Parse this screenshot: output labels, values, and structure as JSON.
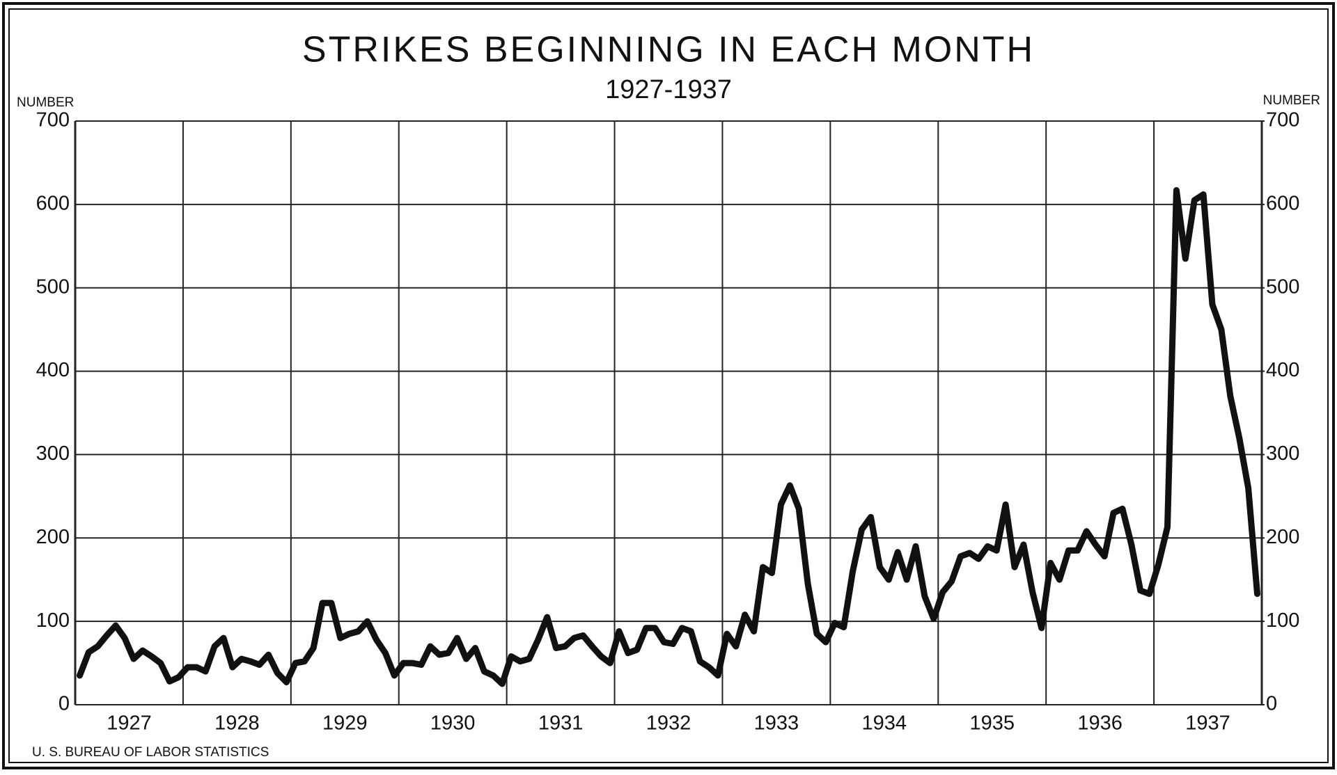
{
  "chart_data": {
    "type": "line",
    "title": "STRIKES BEGINNING IN EACH MONTH",
    "subtitle": "1927-1937",
    "y_label": "NUMBER",
    "y2_label": "NUMBER",
    "source": "U. S. BUREAU OF LABOR STATISTICS",
    "categories": [
      "1927",
      "1928",
      "1929",
      "1930",
      "1931",
      "1932",
      "1933",
      "1934",
      "1935",
      "1936",
      "1937"
    ],
    "values": [
      [
        35,
        63,
        70,
        83,
        95,
        80,
        55,
        65,
        58,
        50,
        28,
        33
      ],
      [
        45,
        45,
        40,
        70,
        80,
        45,
        55,
        52,
        48,
        60,
        38,
        27
      ],
      [
        50,
        52,
        68,
        122,
        122,
        80,
        85,
        88,
        100,
        78,
        62,
        35
      ],
      [
        50,
        50,
        48,
        70,
        60,
        62,
        80,
        55,
        68,
        40,
        35,
        25
      ],
      [
        58,
        52,
        55,
        78,
        105,
        68,
        70,
        80,
        83,
        70,
        58,
        50
      ],
      [
        88,
        62,
        66,
        92,
        92,
        75,
        73,
        92,
        88,
        52,
        45,
        35
      ],
      [
        85,
        70,
        108,
        88,
        165,
        158,
        240,
        263,
        235,
        145,
        85,
        75
      ],
      [
        98,
        93,
        160,
        210,
        225,
        165,
        150,
        183,
        150,
        190,
        130,
        103
      ],
      [
        135,
        148,
        178,
        182,
        175,
        190,
        185,
        240,
        165,
        192,
        135,
        92
      ],
      [
        170,
        150,
        185,
        185,
        208,
        192,
        178,
        230,
        235,
        192,
        137,
        133
      ],
      [
        168,
        213,
        617,
        535,
        605,
        612,
        480,
        450,
        370,
        320,
        260,
        133
      ]
    ],
    "color": "#111111",
    "ylim": [
      0,
      700
    ],
    "yticks": [
      0,
      100,
      200,
      300,
      400,
      500,
      600,
      700
    ],
    "y2lim": [
      0,
      700
    ],
    "y2ticks": [
      0,
      100,
      200,
      300,
      400,
      500,
      600,
      700
    ],
    "grid": true
  }
}
